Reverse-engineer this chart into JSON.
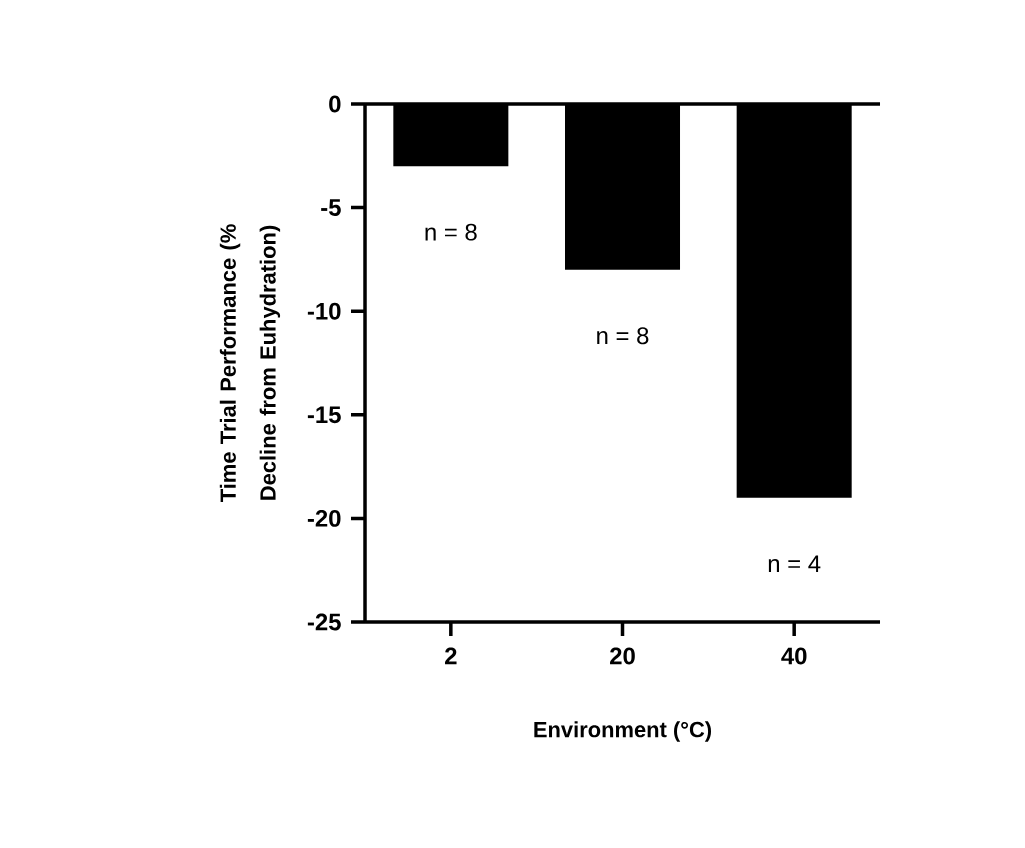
{
  "chart_data": {
    "type": "bar",
    "xlabel": "Environment (°C)",
    "ylabel": "Time Trial Performance (% Decline from Euhydration)",
    "categories": [
      "2",
      "20",
      "40"
    ],
    "values": [
      -3,
      -8,
      -19
    ],
    "color": "#000000",
    "ylim": [
      -25,
      0
    ],
    "yticks": [
      0,
      -5,
      -10,
      -15,
      -20,
      -25
    ],
    "annotations": [
      "n = 8",
      "n = 8",
      "n = 4"
    ]
  }
}
